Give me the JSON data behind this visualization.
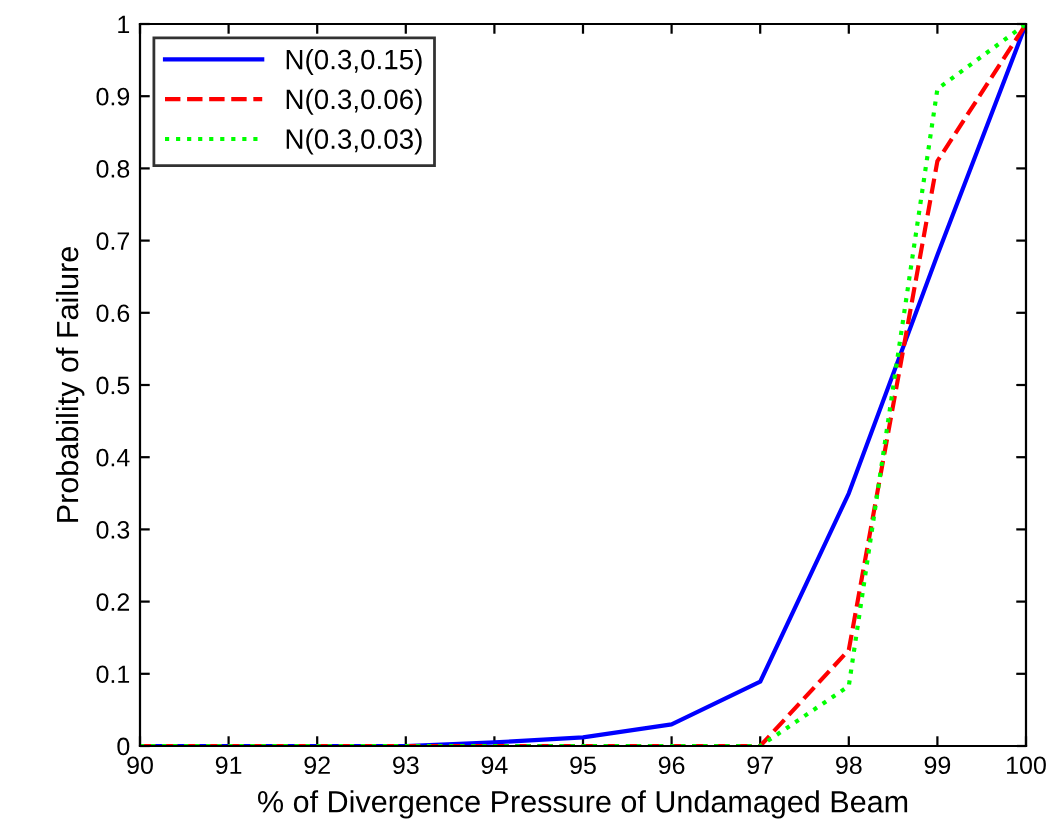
{
  "chart_data": {
    "type": "line",
    "xlabel": "% of Divergence Pressure of Undamaged Beam",
    "ylabel": "Probability of Failure",
    "x": [
      90,
      91,
      92,
      93,
      94,
      95,
      96,
      97,
      98,
      99,
      100
    ],
    "series": [
      {
        "name": "N(0.3,0.15)",
        "color": "#0000ff",
        "line_style": "solid",
        "values": [
          0,
          0,
          0,
          0,
          0.005,
          0.012,
          0.03,
          0.089,
          0.35,
          0.68,
          1
        ]
      },
      {
        "name": "N(0.3,0.06)",
        "color": "#ff0000",
        "line_style": "dashed",
        "values": [
          0,
          0,
          0,
          0,
          0,
          0,
          0,
          0,
          0.133,
          0.81,
          1
        ]
      },
      {
        "name": "N(0.3,0.03)",
        "color": "#00ff00",
        "line_style": "dotted",
        "values": [
          0,
          0,
          0,
          0,
          0,
          0,
          0,
          0,
          0.083,
          0.91,
          1
        ]
      }
    ],
    "xlim": [
      90,
      100
    ],
    "xticks": [
      90,
      91,
      92,
      93,
      94,
      95,
      96,
      97,
      98,
      99,
      100
    ],
    "ylim": [
      0,
      1
    ],
    "yticks": [
      0,
      0.1,
      0.2,
      0.3,
      0.4,
      0.5,
      0.6,
      0.7,
      0.8,
      0.9,
      1
    ],
    "grid": false,
    "legend": "top left"
  }
}
